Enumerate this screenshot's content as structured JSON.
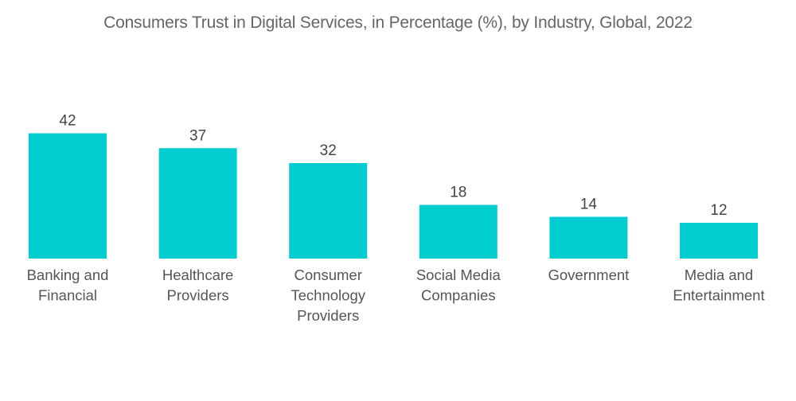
{
  "chart_data": {
    "type": "bar",
    "title": "Consumers Trust in Digital Services, in Percentage (%), by Industry, Global, 2022",
    "xlabel": "",
    "ylabel": "",
    "categories": [
      [
        "Banking and",
        "Financial"
      ],
      [
        "Healthcare",
        "Providers"
      ],
      [
        "Consumer",
        "Technology",
        "Providers"
      ],
      [
        "Social Media",
        "Companies"
      ],
      [
        "Government"
      ],
      [
        "Media and",
        "Entertainment"
      ]
    ],
    "values": [
      42,
      37,
      32,
      18,
      14,
      12
    ],
    "value_labels": [
      "42",
      "37",
      "32",
      "18",
      "14",
      "12"
    ],
    "ylim": [
      0,
      42
    ],
    "grid": false,
    "legend": "none",
    "bar_color": "#00CDD0"
  }
}
